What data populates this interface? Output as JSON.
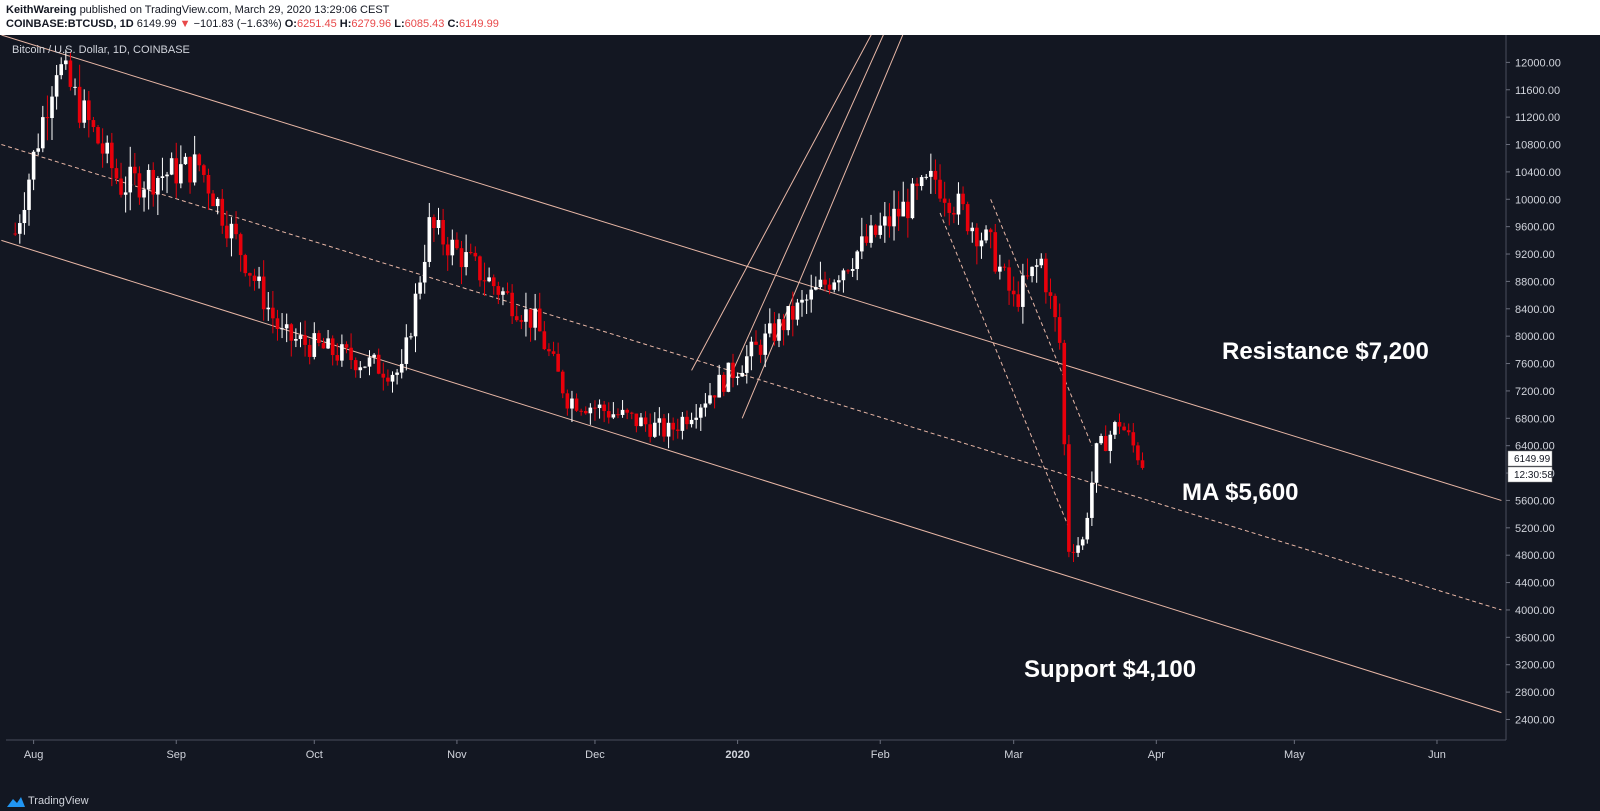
{
  "header": {
    "author": "KeithWareing",
    "published": "published on TradingView.com, March 29, 2020 13:29:06 CEST",
    "symbol_line": "COINBASE:BTCUSD, 1D",
    "last": "6149.99",
    "arrow": "▼",
    "change": "−101.83 (−1.63%)",
    "o_label": "O:",
    "o": "6251.45",
    "h_label": "H:",
    "h": "6279.96",
    "l_label": "L:",
    "l": "6085.43",
    "c_label": "C:",
    "c": "6149.99"
  },
  "colors": {
    "up": "#ffffff",
    "down": "#e8000b",
    "channel": "#e8b7a6",
    "background": "#131722",
    "text": "#d1d4dc",
    "price_tag": "#ffffff"
  },
  "chart_data": {
    "type": "candlestick",
    "title": "Bitcoin / U.S. Dollar, 1D, COINBASE",
    "x_ticks": [
      "Aug",
      "Sep",
      "Oct",
      "Nov",
      "Dec",
      "2020",
      "Feb",
      "Mar",
      "Apr",
      "May",
      "Jun"
    ],
    "x_tick_dates": [
      "2019-08-01",
      "2019-09-01",
      "2019-10-01",
      "2019-11-01",
      "2019-12-01",
      "2020-01-01",
      "2020-02-01",
      "2020-03-01",
      "2020-04-01",
      "2020-05-01",
      "2020-06-01"
    ],
    "y_ticks": [
      2400,
      2800,
      3200,
      3600,
      4000,
      4400,
      4800,
      5200,
      5600,
      6000,
      6400,
      6800,
      7200,
      7600,
      8000,
      8400,
      8800,
      9200,
      9600,
      10000,
      10400,
      10800,
      11200,
      11600,
      12000
    ],
    "ylim": [
      2100,
      12400
    ],
    "last_price": "6149.99",
    "countdown": "12:30:58",
    "annotations": [
      "Resistance $7,200",
      "MA $5,600",
      "Support $4,100"
    ],
    "series": [
      {
        "date": "2019-07-28",
        "value": 9500
      },
      {
        "date": "2019-08-06",
        "value": 12000
      },
      {
        "date": "2019-08-20",
        "value": 10200
      },
      {
        "date": "2019-09-06",
        "value": 10500
      },
      {
        "date": "2019-09-24",
        "value": 8000
      },
      {
        "date": "2019-10-20",
        "value": 7450
      },
      {
        "date": "2019-10-26",
        "value": 9600
      },
      {
        "date": "2019-11-18",
        "value": 8200
      },
      {
        "date": "2019-11-25",
        "value": 7100
      },
      {
        "date": "2019-12-17",
        "value": 6600
      },
      {
        "date": "2020-01-08",
        "value": 8000
      },
      {
        "date": "2020-01-19",
        "value": 8700
      },
      {
        "date": "2020-01-28",
        "value": 9300
      },
      {
        "date": "2020-02-13",
        "value": 10300
      },
      {
        "date": "2020-02-25",
        "value": 9300
      },
      {
        "date": "2020-03-01",
        "value": 8500
      },
      {
        "date": "2020-03-07",
        "value": 9100
      },
      {
        "date": "2020-03-11",
        "value": 7900
      },
      {
        "date": "2020-03-13",
        "value": 4900
      },
      {
        "date": "2020-03-16",
        "value": 5000
      },
      {
        "date": "2020-03-19",
        "value": 6300
      },
      {
        "date": "2020-03-24",
        "value": 6750
      },
      {
        "date": "2020-03-29",
        "value": 6150
      }
    ],
    "channel_lines": [
      {
        "name": "upper",
        "from": [
          "2019-07-25",
          12400
        ],
        "to": [
          "2020-06-15",
          5600
        ]
      },
      {
        "name": "middle",
        "from": [
          "2019-07-25",
          10800
        ],
        "to": [
          "2020-06-15",
          4000
        ]
      },
      {
        "name": "lower",
        "from": [
          "2019-07-25",
          9400
        ],
        "to": [
          "2020-06-15",
          2500
        ]
      },
      {
        "name": "rise-1",
        "from": [
          "2019-12-22",
          7500
        ],
        "to": [
          "2020-02-03",
          12900
        ]
      },
      {
        "name": "rise-2",
        "from": [
          "2019-12-29",
          7200
        ],
        "to": [
          "2020-02-05",
          12900
        ]
      },
      {
        "name": "rise-3",
        "from": [
          "2020-01-02",
          6800
        ],
        "to": [
          "2020-02-09",
          12900
        ]
      }
    ],
    "dashed_lines": [
      {
        "from": [
          "2020-02-14",
          9800
        ],
        "to": [
          "2020-03-13",
          5200
        ]
      },
      {
        "from": [
          "2020-02-25",
          10000
        ],
        "to": [
          "2020-03-18",
          6400
        ]
      }
    ]
  },
  "footer": {
    "brand": "TradingView"
  }
}
